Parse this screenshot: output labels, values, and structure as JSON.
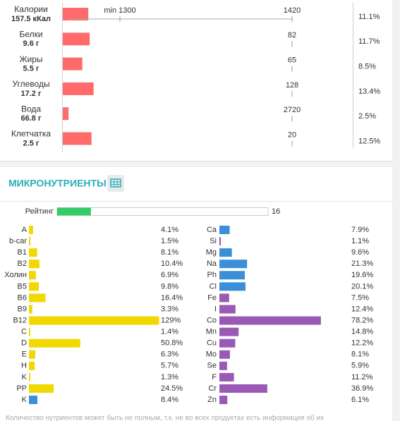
{
  "macros": [
    {
      "name": "Калории",
      "amount": "157.5 кКал",
      "target": 1420,
      "min_label": "min 1300",
      "pct": 11.1,
      "pct_label": "11.1%"
    },
    {
      "name": "Белки",
      "amount": "9.6 г",
      "target": 82,
      "pct": 11.7,
      "pct_label": "11.7%"
    },
    {
      "name": "Жиры",
      "amount": "5.5 г",
      "target": 65,
      "pct": 8.5,
      "pct_label": "8.5%"
    },
    {
      "name": "Углеводы",
      "amount": "17.2 г",
      "target": 128,
      "pct": 13.4,
      "pct_label": "13.4%"
    },
    {
      "name": "Вода",
      "amount": "66.8 г",
      "target": 2720,
      "pct": 2.5,
      "pct_label": "2.5%"
    },
    {
      "name": "Клетчатка",
      "amount": "2.5 г",
      "target": 20,
      "pct": 12.5,
      "pct_label": "12.5%"
    }
  ],
  "macro_color": "#ff6b6b",
  "micro": {
    "title": "МИКРОНУТРИЕНТЫ",
    "rating": {
      "label": "Рейтинг",
      "value": 16,
      "color": "#33cc66"
    },
    "left": [
      {
        "name": "A",
        "pct": 4.1,
        "pct_label": "4.1%",
        "color": "#f0d800"
      },
      {
        "name": "b-car",
        "pct": 1.5,
        "pct_label": "1.5%",
        "color": "#f0d800"
      },
      {
        "name": "B1",
        "pct": 8.1,
        "pct_label": "8.1%",
        "color": "#f0d800"
      },
      {
        "name": "B2",
        "pct": 10.4,
        "pct_label": "10.4%",
        "color": "#f0d800"
      },
      {
        "name": "Холин",
        "pct": 6.9,
        "pct_label": "6.9%",
        "color": "#f0d800"
      },
      {
        "name": "B5",
        "pct": 9.8,
        "pct_label": "9.8%",
        "color": "#f0d800"
      },
      {
        "name": "B6",
        "pct": 16.4,
        "pct_label": "16.4%",
        "color": "#f0d800"
      },
      {
        "name": "B9",
        "pct": 3.3,
        "pct_label": "3.3%",
        "color": "#f0d800"
      },
      {
        "name": "B12",
        "pct": 129,
        "pct_label": "129%",
        "color": "#f0d800"
      },
      {
        "name": "C",
        "pct": 1.4,
        "pct_label": "1.4%",
        "color": "#f0d800"
      },
      {
        "name": "D",
        "pct": 50.8,
        "pct_label": "50.8%",
        "color": "#f0d800"
      },
      {
        "name": "E",
        "pct": 6.3,
        "pct_label": "6.3%",
        "color": "#f0d800"
      },
      {
        "name": "H",
        "pct": 5.7,
        "pct_label": "5.7%",
        "color": "#f0d800"
      },
      {
        "name": "K",
        "pct": 1.3,
        "pct_label": "1.3%",
        "color": "#f0d800"
      },
      {
        "name": "PP",
        "pct": 24.5,
        "pct_label": "24.5%",
        "color": "#f0d800"
      },
      {
        "name": "K",
        "pct": 8.4,
        "pct_label": "8.4%",
        "color": "#3a8fd8"
      }
    ],
    "right": [
      {
        "name": "Ca",
        "pct": 7.9,
        "pct_label": "7.9%",
        "color": "#3a8fd8"
      },
      {
        "name": "Si",
        "pct": 1.1,
        "pct_label": "1.1%",
        "color": "#9b59b6"
      },
      {
        "name": "Mg",
        "pct": 9.6,
        "pct_label": "9.6%",
        "color": "#3a8fd8"
      },
      {
        "name": "Na",
        "pct": 21.3,
        "pct_label": "21.3%",
        "color": "#3a8fd8"
      },
      {
        "name": "Ph",
        "pct": 19.6,
        "pct_label": "19.6%",
        "color": "#3a8fd8"
      },
      {
        "name": "Cl",
        "pct": 20.1,
        "pct_label": "20.1%",
        "color": "#3a8fd8"
      },
      {
        "name": "Fe",
        "pct": 7.5,
        "pct_label": "7.5%",
        "color": "#9b59b6"
      },
      {
        "name": "I",
        "pct": 12.4,
        "pct_label": "12.4%",
        "color": "#9b59b6"
      },
      {
        "name": "Co",
        "pct": 78.2,
        "pct_label": "78.2%",
        "color": "#9b59b6"
      },
      {
        "name": "Mn",
        "pct": 14.8,
        "pct_label": "14.8%",
        "color": "#9b59b6"
      },
      {
        "name": "Cu",
        "pct": 12.2,
        "pct_label": "12.2%",
        "color": "#9b59b6"
      },
      {
        "name": "Mo",
        "pct": 8.1,
        "pct_label": "8.1%",
        "color": "#9b59b6"
      },
      {
        "name": "Se",
        "pct": 5.9,
        "pct_label": "5.9%",
        "color": "#9b59b6"
      },
      {
        "name": "F",
        "pct": 11.2,
        "pct_label": "11.2%",
        "color": "#9b59b6"
      },
      {
        "name": "Cr",
        "pct": 36.9,
        "pct_label": "36.9%",
        "color": "#9b59b6"
      },
      {
        "name": "Zn",
        "pct": 6.1,
        "pct_label": "6.1%",
        "color": "#9b59b6"
      }
    ]
  },
  "footer": "Количество нутриентов может быть не полным, т.к. не во всех продуктах есть информация об их"
}
